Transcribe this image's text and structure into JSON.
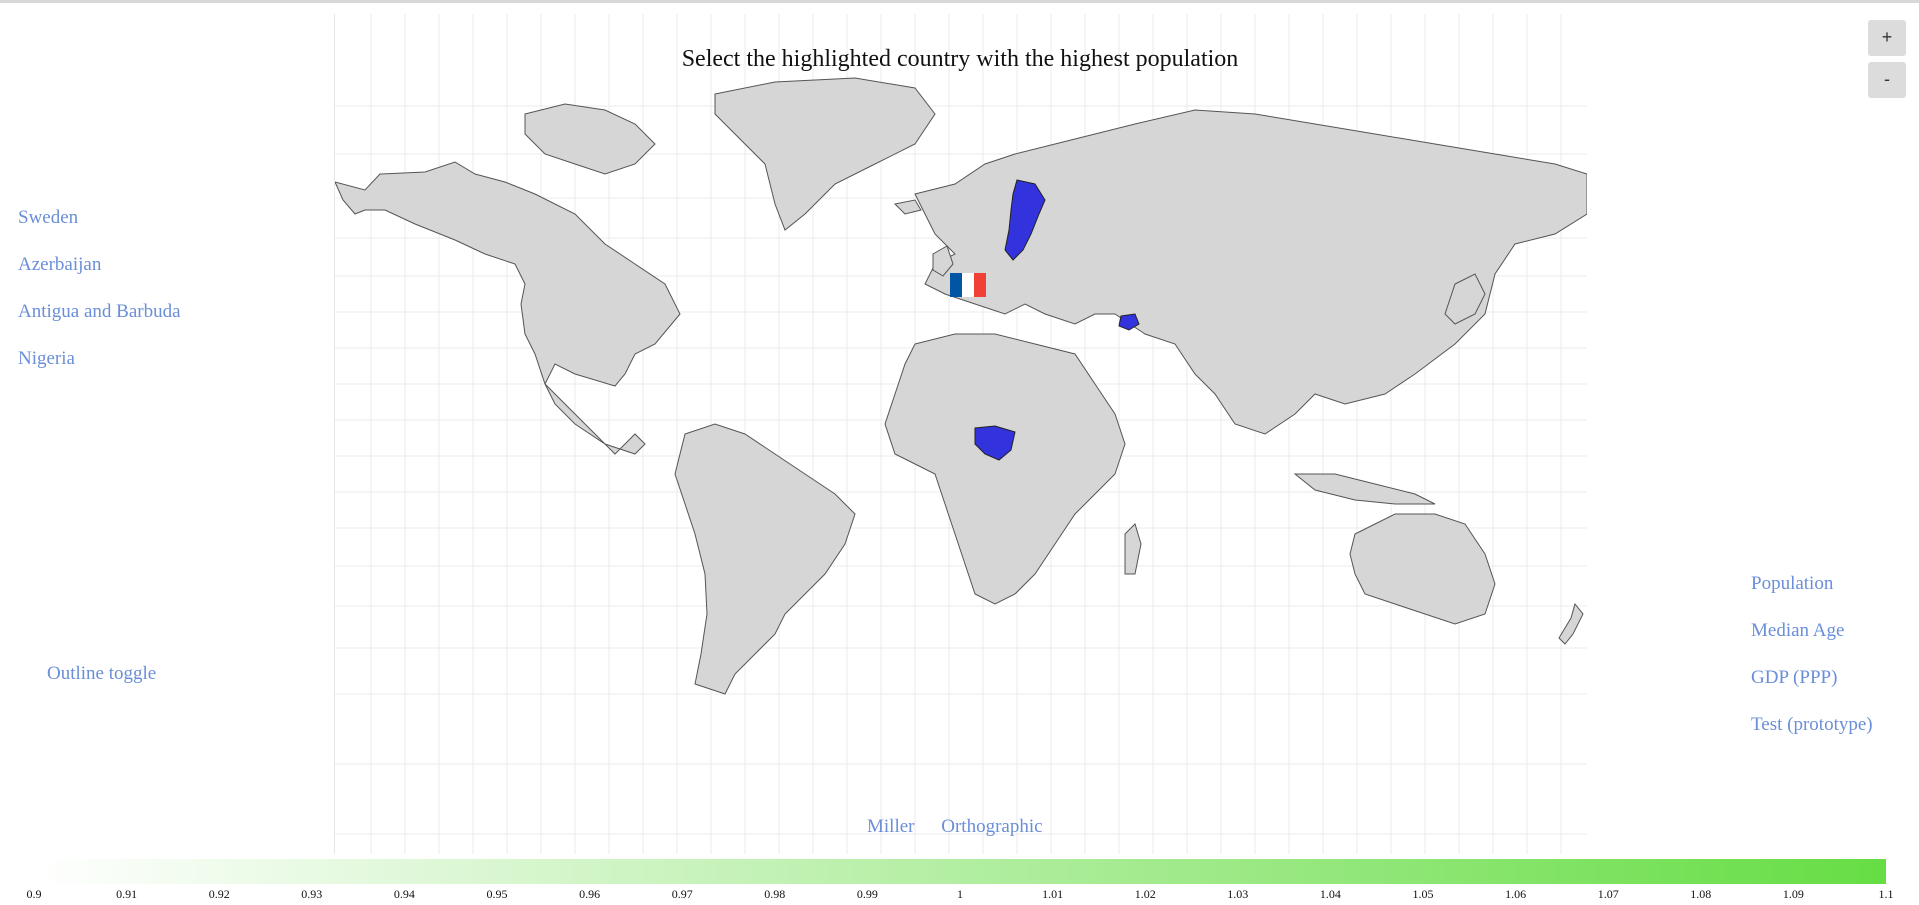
{
  "title": "Select the highlighted country with the highest population",
  "countries": [
    "Sweden",
    "Azerbaijan",
    "Antigua and Barbuda",
    "Nigeria"
  ],
  "metrics": [
    "Population",
    "Median Age",
    "GDP (PPP)",
    "Test (prototype)"
  ],
  "outline_toggle": "Outline toggle",
  "projections": [
    "Miller",
    "Orthographic"
  ],
  "zoom": {
    "in": "+",
    "out": "-"
  },
  "legend": {
    "ticks": [
      "0.9",
      "0.91",
      "0.92",
      "0.93",
      "0.94",
      "0.95",
      "0.96",
      "0.97",
      "0.98",
      "0.99",
      "1",
      "1.01",
      "1.02",
      "1.03",
      "1.04",
      "1.05",
      "1.06",
      "1.07",
      "1.08",
      "1.09",
      "1.1"
    ],
    "color_low": "#ffffff",
    "color_high": "#66dd44"
  },
  "colors": {
    "land": "#d6d6d6",
    "highlight": "#3333dd",
    "link": "#6a8ed8",
    "grid": "#e8e8e8"
  },
  "flag": {
    "country": "France",
    "colors": [
      "#0055a4",
      "#ffffff",
      "#ef4135"
    ]
  }
}
